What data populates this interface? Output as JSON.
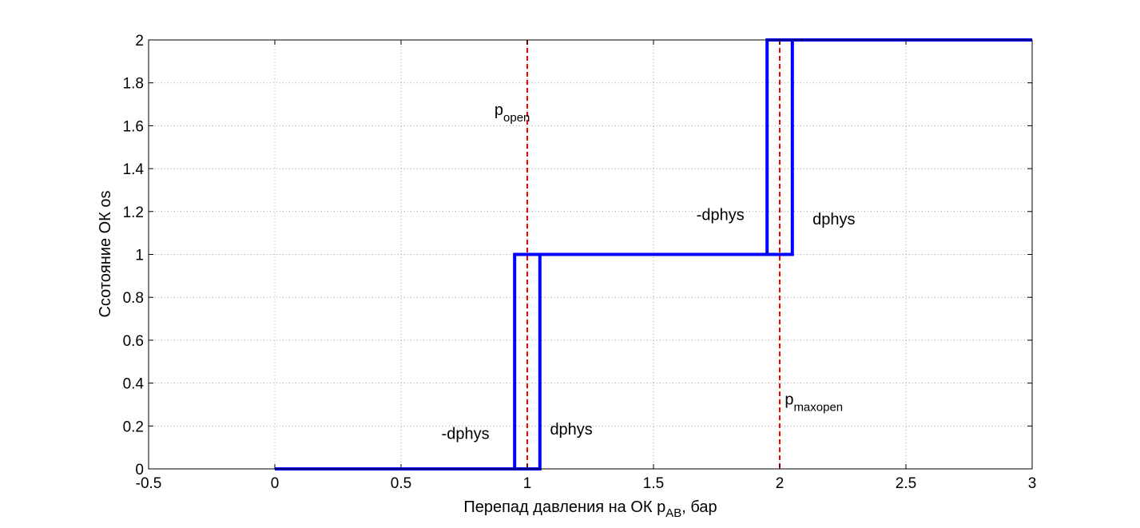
{
  "chart_data": {
    "type": "line",
    "xlim": [
      -0.5,
      3
    ],
    "ylim": [
      0,
      2
    ],
    "xticks": [
      "-0.5",
      "0",
      "0.5",
      "1",
      "1.5",
      "2",
      "2.5",
      "3"
    ],
    "xtick_values": [
      -0.5,
      0,
      0.5,
      1,
      1.5,
      2,
      2.5,
      3
    ],
    "yticks": [
      "0",
      "0.2",
      "0.4",
      "0.6",
      "0.8",
      "1",
      "1.2",
      "1.4",
      "1.6",
      "1.8",
      "2"
    ],
    "ytick_values": [
      0,
      0.2,
      0.4,
      0.6,
      0.8,
      1,
      1.2,
      1.4,
      1.6,
      1.8,
      2
    ],
    "grid": true,
    "xlabel": {
      "main": "Перепад давления на ОК p",
      "sub": "AB",
      "tail": ", бар"
    },
    "ylabel": "Ссотояние ОК os",
    "series": [
      {
        "color": "#0000ff",
        "x": [
          0,
          0.95,
          0.95,
          1.05,
          1.05,
          0.95,
          0.95,
          1.95,
          1.95,
          2.05,
          2.05,
          1.95,
          1.95,
          3
        ],
        "y": [
          0,
          0,
          1,
          1,
          0,
          0,
          1,
          1,
          2,
          2,
          1,
          1,
          2,
          2
        ]
      }
    ],
    "reference_lines": [
      {
        "x": 1,
        "color": "#ff0000"
      },
      {
        "x": 2,
        "color": "#ff0000"
      }
    ],
    "annotations": [
      {
        "main": "p",
        "sub": "open",
        "x": 0.87,
        "y": 1.65
      },
      {
        "main": "p",
        "sub": "maxopen",
        "x": 2.02,
        "y": 0.3
      },
      {
        "main": "-dphys",
        "sub": "",
        "x": 0.66,
        "y": 0.14
      },
      {
        "main": "dphys",
        "sub": "",
        "x": 1.09,
        "y": 0.16
      },
      {
        "main": "-dphys",
        "sub": "",
        "x": 1.67,
        "y": 1.16
      },
      {
        "main": "dphys",
        "sub": "",
        "x": 2.13,
        "y": 1.14
      }
    ]
  }
}
